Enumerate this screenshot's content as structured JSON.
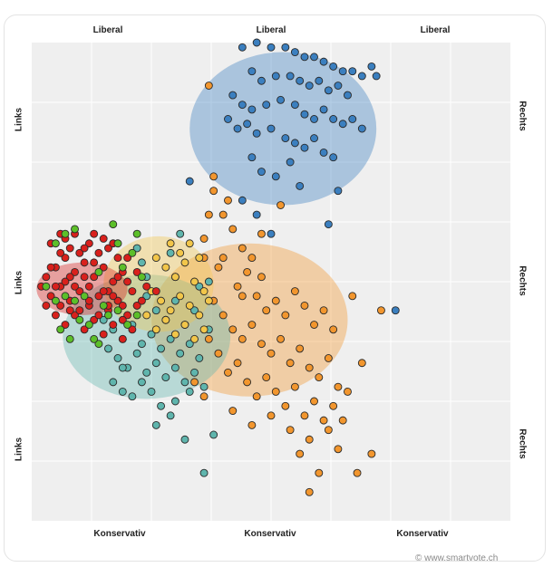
{
  "labels": {
    "top": [
      "Liberal",
      "Liberal",
      "Liberal"
    ],
    "bottom": [
      "Konservativ",
      "Konservativ",
      "Konservativ"
    ],
    "left": [
      "Links",
      "Links",
      "Links"
    ],
    "right": [
      "Rechts",
      "Rechts",
      "Rechts"
    ]
  },
  "credit": "© www.smartvote.ch",
  "chart_data": {
    "type": "scatter",
    "xlim": [
      0,
      100
    ],
    "ylim": [
      0,
      100
    ],
    "x_meaning": "Links (0) to Rechts (100)",
    "y_meaning": "Konservativ (0) to Liberal (100)",
    "grid": true,
    "colors": {
      "red": "#d9201c",
      "green": "#5cbf29",
      "teal": "#5fb5ad",
      "yellow": "#f2c64a",
      "orange": "#f2962e",
      "blue": "#3b7fbf"
    },
    "clusters": [
      {
        "color": "blue",
        "center": [
          52.5,
          82
        ],
        "radius": [
          19.5,
          16
        ]
      },
      {
        "color": "orange",
        "center": [
          45.5,
          42
        ],
        "radius": [
          20.5,
          16
        ]
      },
      {
        "color": "teal",
        "center": [
          24,
          38.5
        ],
        "radius": [
          17.5,
          13
        ]
      },
      {
        "color": "yellow",
        "center": [
          26.5,
          49.5
        ],
        "radius": [
          11.5,
          10
        ]
      },
      {
        "color": "red",
        "center": [
          10.5,
          48.5
        ],
        "radius": [
          9.5,
          5.5
        ]
      }
    ],
    "series": [
      {
        "color": "blue",
        "points": [
          [
            44,
            99
          ],
          [
            47,
            100
          ],
          [
            50,
            99
          ],
          [
            53,
            99
          ],
          [
            55,
            98
          ],
          [
            57,
            97
          ],
          [
            59,
            97
          ],
          [
            61,
            96
          ],
          [
            63,
            95
          ],
          [
            65,
            94
          ],
          [
            67,
            94
          ],
          [
            69,
            93
          ],
          [
            71,
            95
          ],
          [
            72,
            93
          ],
          [
            46,
            94
          ],
          [
            48,
            92
          ],
          [
            51,
            93
          ],
          [
            54,
            93
          ],
          [
            56,
            92
          ],
          [
            58,
            91
          ],
          [
            60,
            92
          ],
          [
            62,
            90
          ],
          [
            64,
            91
          ],
          [
            66,
            89
          ],
          [
            42,
            89
          ],
          [
            44,
            87
          ],
          [
            46,
            86
          ],
          [
            49,
            87
          ],
          [
            52,
            88
          ],
          [
            55,
            87
          ],
          [
            57,
            85
          ],
          [
            59,
            84
          ],
          [
            61,
            86
          ],
          [
            63,
            84
          ],
          [
            65,
            83
          ],
          [
            67,
            84
          ],
          [
            69,
            82
          ],
          [
            41,
            84
          ],
          [
            43,
            82
          ],
          [
            45,
            83
          ],
          [
            47,
            81
          ],
          [
            50,
            82
          ],
          [
            53,
            80
          ],
          [
            55,
            79
          ],
          [
            57,
            78
          ],
          [
            59,
            80
          ],
          [
            61,
            77
          ],
          [
            63,
            76
          ],
          [
            46,
            76
          ],
          [
            48,
            73
          ],
          [
            51,
            72
          ],
          [
            54,
            75
          ],
          [
            56,
            70
          ],
          [
            44,
            67
          ],
          [
            47,
            64
          ],
          [
            62,
            62
          ],
          [
            33,
            71
          ],
          [
            64,
            69
          ],
          [
            50,
            60
          ],
          [
            76,
            44
          ]
        ]
      },
      {
        "color": "orange",
        "points": [
          [
            37,
            91
          ],
          [
            38,
            72
          ],
          [
            38,
            69
          ],
          [
            37,
            64
          ],
          [
            36,
            59
          ],
          [
            36,
            55
          ],
          [
            40,
            64
          ],
          [
            42,
            61
          ],
          [
            44,
            57
          ],
          [
            46,
            55
          ],
          [
            48,
            51
          ],
          [
            40,
            55
          ],
          [
            43,
            49
          ],
          [
            45,
            52
          ],
          [
            47,
            47
          ],
          [
            49,
            44
          ],
          [
            51,
            46
          ],
          [
            53,
            43
          ],
          [
            55,
            48
          ],
          [
            57,
            45
          ],
          [
            59,
            41
          ],
          [
            61,
            44
          ],
          [
            63,
            40
          ],
          [
            38,
            46
          ],
          [
            40,
            43
          ],
          [
            42,
            40
          ],
          [
            44,
            38
          ],
          [
            46,
            41
          ],
          [
            48,
            37
          ],
          [
            50,
            35
          ],
          [
            52,
            38
          ],
          [
            54,
            33
          ],
          [
            56,
            36
          ],
          [
            58,
            32
          ],
          [
            60,
            30
          ],
          [
            62,
            34
          ],
          [
            64,
            28
          ],
          [
            37,
            38
          ],
          [
            39,
            35
          ],
          [
            41,
            31
          ],
          [
            43,
            33
          ],
          [
            45,
            29
          ],
          [
            47,
            26
          ],
          [
            49,
            30
          ],
          [
            51,
            27
          ],
          [
            53,
            24
          ],
          [
            55,
            28
          ],
          [
            57,
            22
          ],
          [
            59,
            25
          ],
          [
            61,
            21
          ],
          [
            63,
            24
          ],
          [
            34,
            29
          ],
          [
            36,
            26
          ],
          [
            42,
            23
          ],
          [
            46,
            20
          ],
          [
            50,
            22
          ],
          [
            54,
            19
          ],
          [
            58,
            17
          ],
          [
            62,
            19
          ],
          [
            64,
            15
          ],
          [
            56,
            14
          ],
          [
            60,
            10
          ],
          [
            58,
            6
          ],
          [
            52,
            66
          ],
          [
            48,
            60
          ],
          [
            41,
            67
          ],
          [
            67,
            47
          ],
          [
            66,
            27
          ],
          [
            65,
            21
          ],
          [
            69,
            33
          ],
          [
            73,
            44
          ],
          [
            68,
            10
          ],
          [
            71,
            14
          ],
          [
            39,
            53
          ],
          [
            44,
            47
          ]
        ]
      },
      {
        "color": "teal",
        "points": [
          [
            15,
            42
          ],
          [
            17,
            40
          ],
          [
            19,
            38
          ],
          [
            21,
            41
          ],
          [
            23,
            37
          ],
          [
            25,
            39
          ],
          [
            27,
            36
          ],
          [
            29,
            38
          ],
          [
            31,
            35
          ],
          [
            33,
            37
          ],
          [
            35,
            34
          ],
          [
            16,
            36
          ],
          [
            18,
            34
          ],
          [
            20,
            32
          ],
          [
            22,
            35
          ],
          [
            24,
            31
          ],
          [
            26,
            33
          ],
          [
            28,
            30
          ],
          [
            30,
            32
          ],
          [
            32,
            29
          ],
          [
            34,
            31
          ],
          [
            36,
            28
          ],
          [
            17,
            29
          ],
          [
            19,
            27
          ],
          [
            21,
            26
          ],
          [
            23,
            29
          ],
          [
            25,
            27
          ],
          [
            27,
            24
          ],
          [
            30,
            25
          ],
          [
            33,
            27
          ],
          [
            26,
            44
          ],
          [
            28,
            42
          ],
          [
            30,
            46
          ],
          [
            32,
            41
          ],
          [
            34,
            44
          ],
          [
            37,
            40
          ],
          [
            24,
            51
          ],
          [
            23,
            54
          ],
          [
            22,
            57
          ],
          [
            24,
            47
          ],
          [
            29,
            56
          ],
          [
            30,
            51
          ],
          [
            35,
            49
          ],
          [
            22,
            45
          ],
          [
            31,
            60
          ],
          [
            19,
            32
          ],
          [
            26,
            20
          ],
          [
            29,
            22
          ],
          [
            32,
            17
          ],
          [
            37,
            50
          ],
          [
            38,
            18
          ],
          [
            36,
            10
          ]
        ]
      },
      {
        "color": "yellow",
        "points": [
          [
            26,
            55
          ],
          [
            28,
            53
          ],
          [
            30,
            51
          ],
          [
            32,
            54
          ],
          [
            34,
            50
          ],
          [
            36,
            48
          ],
          [
            25,
            48
          ],
          [
            27,
            46
          ],
          [
            29,
            44
          ],
          [
            31,
            47
          ],
          [
            33,
            45
          ],
          [
            35,
            43
          ],
          [
            24,
            43
          ],
          [
            26,
            40
          ],
          [
            28,
            42
          ],
          [
            30,
            39
          ],
          [
            32,
            41
          ],
          [
            34,
            38
          ],
          [
            36,
            40
          ],
          [
            37,
            46
          ],
          [
            33,
            58
          ],
          [
            29,
            58
          ],
          [
            31,
            56
          ],
          [
            35,
            55
          ]
        ]
      },
      {
        "color": "red",
        "points": [
          [
            3,
            51
          ],
          [
            5,
            53
          ],
          [
            7,
            55
          ],
          [
            9,
            52
          ],
          [
            11,
            54
          ],
          [
            13,
            51
          ],
          [
            15,
            53
          ],
          [
            17,
            50
          ],
          [
            19,
            52
          ],
          [
            4,
            47
          ],
          [
            6,
            49
          ],
          [
            8,
            46
          ],
          [
            10,
            48
          ],
          [
            12,
            45
          ],
          [
            14,
            47
          ],
          [
            16,
            44
          ],
          [
            18,
            46
          ],
          [
            20,
            43
          ],
          [
            5,
            43
          ],
          [
            7,
            41
          ],
          [
            9,
            43
          ],
          [
            11,
            40
          ],
          [
            13,
            42
          ],
          [
            15,
            39
          ],
          [
            17,
            41
          ],
          [
            19,
            38
          ],
          [
            6,
            56
          ],
          [
            8,
            57
          ],
          [
            10,
            56
          ],
          [
            12,
            58
          ],
          [
            14,
            56
          ],
          [
            16,
            57
          ],
          [
            18,
            55
          ],
          [
            3,
            45
          ],
          [
            2,
            49
          ],
          [
            4,
            53
          ],
          [
            21,
            48
          ],
          [
            22,
            45
          ],
          [
            8,
            51
          ],
          [
            12,
            49
          ],
          [
            16,
            48
          ],
          [
            10,
            44
          ],
          [
            14,
            43
          ],
          [
            18,
            51
          ],
          [
            6,
            45
          ],
          [
            9,
            49
          ],
          [
            13,
            54
          ],
          [
            17,
            47
          ],
          [
            20,
            50
          ],
          [
            7,
            50
          ],
          [
            11,
            51
          ],
          [
            15,
            48
          ],
          [
            5,
            49
          ],
          [
            8,
            44
          ],
          [
            12,
            46
          ],
          [
            16,
            45
          ],
          [
            19,
            45
          ],
          [
            11,
            57
          ],
          [
            7,
            59
          ],
          [
            9,
            60
          ],
          [
            13,
            60
          ],
          [
            15,
            59
          ],
          [
            17,
            58
          ],
          [
            4,
            58
          ],
          [
            6,
            60
          ],
          [
            20,
            55
          ],
          [
            22,
            52
          ],
          [
            21,
            40
          ],
          [
            19,
            42
          ],
          [
            24,
            49
          ],
          [
            26,
            48
          ],
          [
            23,
            46
          ]
        ]
      },
      {
        "color": "green",
        "points": [
          [
            3,
            49
          ],
          [
            5,
            58
          ],
          [
            7,
            60
          ],
          [
            9,
            61
          ],
          [
            17,
            62
          ],
          [
            21,
            56
          ],
          [
            22,
            60
          ],
          [
            7,
            47
          ],
          [
            10,
            42
          ],
          [
            14,
            37
          ],
          [
            20,
            41
          ],
          [
            19,
            53
          ],
          [
            12,
            41
          ],
          [
            8,
            38
          ],
          [
            15,
            45
          ],
          [
            16,
            43
          ],
          [
            11,
            47
          ],
          [
            13,
            38
          ],
          [
            6,
            40
          ],
          [
            18,
            44
          ],
          [
            9,
            46
          ],
          [
            5,
            46
          ],
          [
            14,
            52
          ],
          [
            18,
            58
          ],
          [
            23,
            51
          ],
          [
            22,
            43
          ]
        ]
      }
    ]
  }
}
